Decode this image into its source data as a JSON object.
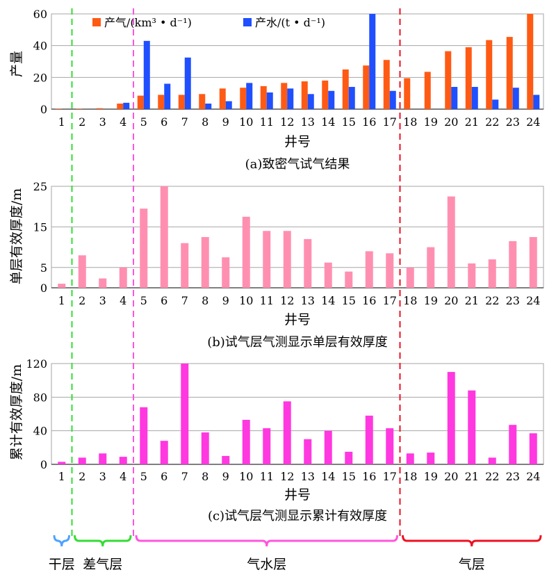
{
  "chart_data": [
    {
      "type": "bar",
      "title": "(a)致密气试气结果",
      "xlabel": "井号",
      "ylabel": "产量",
      "ylim": [
        0,
        60
      ],
      "yticks": [
        0,
        20,
        40,
        60
      ],
      "grid": true,
      "legend": "top",
      "categories": [
        "1",
        "2",
        "3",
        "4",
        "5",
        "6",
        "7",
        "8",
        "9",
        "10",
        "11",
        "12",
        "13",
        "14",
        "15",
        "16",
        "17",
        "18",
        "19",
        "20",
        "21",
        "22",
        "23",
        "24"
      ],
      "series": [
        {
          "name": "产气/(km³ • d⁻¹)",
          "color": "#ff5a14",
          "values": [
            0.3,
            0.3,
            0.6,
            3.5,
            8.5,
            9,
            9,
            9.5,
            13,
            13.5,
            14.5,
            16.5,
            17.5,
            18,
            25,
            27.5,
            31,
            19.5,
            23.5,
            36.5,
            39,
            43.5,
            45.5,
            60
          ]
        },
        {
          "name": "产水/(t • d⁻¹)",
          "color": "#1f4fff",
          "values": [
            0,
            0,
            0,
            4,
            43,
            16,
            32.5,
            3.5,
            5,
            16.5,
            10.5,
            13,
            9.5,
            11.5,
            14,
            60,
            11.5,
            0,
            0,
            14,
            14,
            6,
            13.5,
            9
          ]
        }
      ]
    },
    {
      "type": "bar",
      "title": "(b)试气层气测显示单层有效厚度",
      "xlabel": "井号",
      "ylabel": "单层有效厚度/m",
      "ylim": [
        0,
        25
      ],
      "yticks": [
        0,
        5,
        15,
        25
      ],
      "grid": true,
      "categories": [
        "1",
        "2",
        "3",
        "4",
        "5",
        "6",
        "7",
        "8",
        "9",
        "10",
        "11",
        "12",
        "13",
        "14",
        "15",
        "16",
        "17",
        "18",
        "19",
        "20",
        "21",
        "22",
        "23",
        "24"
      ],
      "series": [
        {
          "name": "",
          "color": "#ff8fb1",
          "values": [
            1,
            8,
            2.3,
            5,
            19.5,
            25,
            11,
            12.5,
            7.5,
            17.5,
            14,
            14,
            12,
            6.2,
            4,
            9,
            8.5,
            5,
            10,
            22.5,
            6,
            7,
            11.5,
            12.5
          ]
        }
      ]
    },
    {
      "type": "bar",
      "title": "(c)试气层气测显示累计有效厚度",
      "xlabel": "井号",
      "ylabel": "累计有效厚度/m",
      "ylim": [
        0,
        120
      ],
      "yticks": [
        0,
        40,
        80,
        120
      ],
      "grid": true,
      "categories": [
        "1",
        "2",
        "3",
        "4",
        "5",
        "6",
        "7",
        "8",
        "9",
        "10",
        "11",
        "12",
        "13",
        "14",
        "15",
        "16",
        "17",
        "18",
        "19",
        "20",
        "21",
        "22",
        "23",
        "24"
      ],
      "series": [
        {
          "name": "",
          "color": "#ff38e0",
          "values": [
            3,
            8,
            13,
            9,
            68,
            28,
            120,
            38,
            10,
            53,
            43,
            75,
            30,
            40,
            15,
            58,
            43,
            13,
            14,
            110,
            88,
            8,
            47,
            37
          ]
        }
      ]
    }
  ],
  "zones": [
    {
      "label": "干层",
      "color": "#4da3ff",
      "from": 1,
      "to": 1
    },
    {
      "label": "差气层",
      "color": "#33dd33",
      "from": 2,
      "to": 4
    },
    {
      "label": "气水层",
      "color": "#ff55dd",
      "from": 5,
      "to": 17
    },
    {
      "label": "气层",
      "color": "#ee1122",
      "from": 18,
      "to": 24
    }
  ],
  "dividers": [
    {
      "after": 1,
      "color": "#33dd33"
    },
    {
      "after": 4,
      "color": "#ff55dd"
    },
    {
      "after": 17,
      "color": "#ee1122"
    }
  ]
}
